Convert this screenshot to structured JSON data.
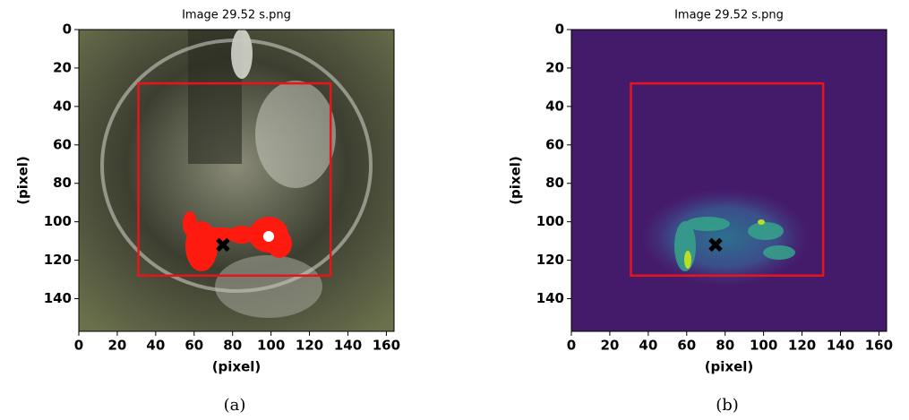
{
  "chart_data": [
    {
      "type": "image",
      "title": "Image 29.52 s.png",
      "xlabel": "(pixel)",
      "ylabel": "(pixel)",
      "caption": "(a)",
      "xlim": [
        0,
        164
      ],
      "ylim": [
        157,
        0
      ],
      "xticks": [
        0,
        20,
        40,
        60,
        80,
        100,
        120,
        140,
        160
      ],
      "yticks": [
        0,
        20,
        40,
        60,
        80,
        100,
        120,
        140
      ],
      "box": {
        "x": [
          31,
          131
        ],
        "y": [
          28,
          128
        ],
        "color": "#e8141b"
      },
      "marker": {
        "x": 75,
        "y": 112,
        "color": "#000000"
      }
    },
    {
      "type": "image",
      "title": "Image 29.52 s.png",
      "xlabel": "(pixel)",
      "ylabel": "(pixel)",
      "caption": "(b)",
      "xlim": [
        0,
        164
      ],
      "ylim": [
        157,
        0
      ],
      "xticks": [
        0,
        20,
        40,
        60,
        80,
        100,
        120,
        140,
        160
      ],
      "yticks": [
        0,
        20,
        40,
        60,
        80,
        100,
        120,
        140
      ],
      "box": {
        "x": [
          31,
          131
        ],
        "y": [
          28,
          128
        ],
        "color": "#e8141b"
      },
      "marker": {
        "x": 75,
        "y": 112,
        "color": "#000000"
      }
    }
  ]
}
